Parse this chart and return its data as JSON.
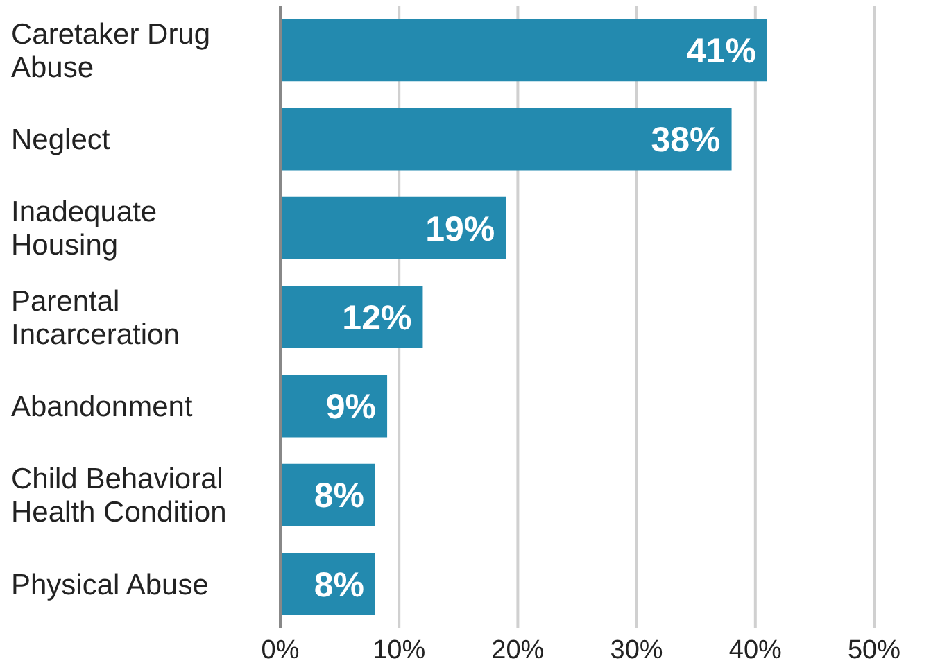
{
  "chart_data": {
    "type": "bar",
    "orientation": "horizontal",
    "categories": [
      "Caretaker Drug Abuse",
      "Neglect",
      "Inadequate Housing",
      "Parental Incarceration",
      "Abandonment",
      "Child Behavioral Health Condition",
      "Physical Abuse"
    ],
    "values": [
      41,
      38,
      19,
      12,
      9,
      8,
      8
    ],
    "value_labels": [
      "41%",
      "38%",
      "19%",
      "12%",
      "9%",
      "8%",
      "8%"
    ],
    "color": "#238aaf",
    "xlim": [
      0,
      50
    ],
    "xticks": [
      {
        "value": 0,
        "label": "0%"
      },
      {
        "value": 10,
        "label": "10%"
      },
      {
        "value": 20,
        "label": "20%"
      },
      {
        "value": 30,
        "label": "30%"
      },
      {
        "value": 40,
        "label": "40%"
      },
      {
        "value": 50,
        "label": "50%"
      }
    ],
    "grid": "x"
  }
}
